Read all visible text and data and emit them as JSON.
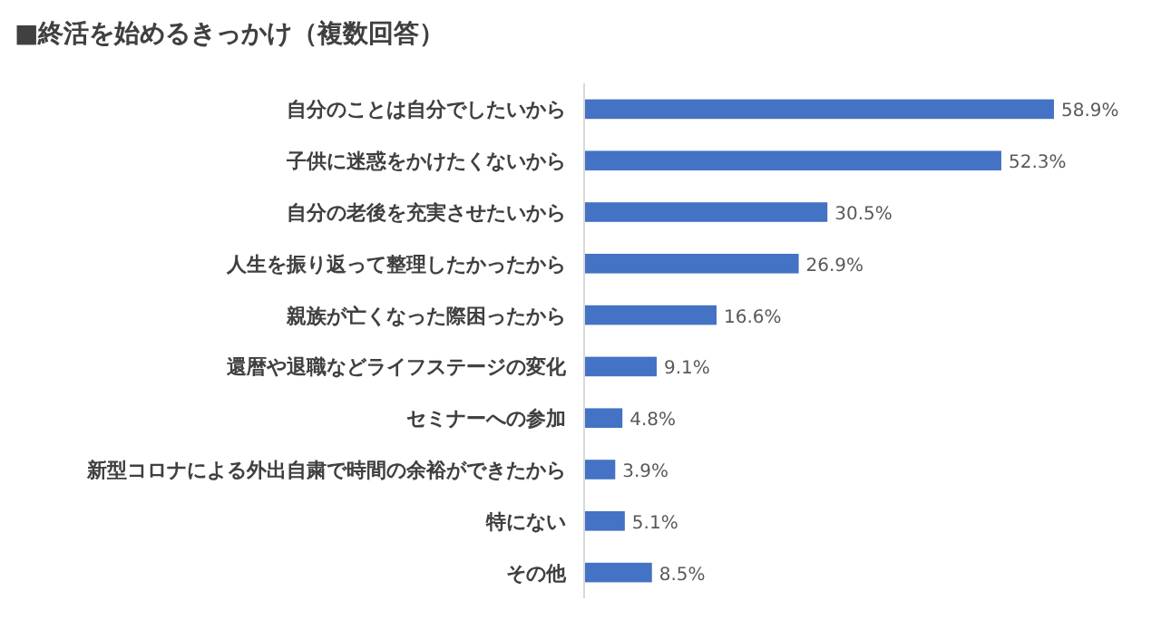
{
  "chart_data": {
    "type": "bar",
    "orientation": "horizontal",
    "title": "■終活を始めるきっかけ（複数回答）",
    "categories": [
      "自分のことは自分でしたいから",
      "子供に迷惑をかけたくないから",
      "自分の老後を充実させたいから",
      "人生を振り返って整理したかったから",
      "親族が亡くなった際困ったから",
      "還暦や退職などライフステージの変化",
      "セミナーへの参加",
      "新型コロナによる外出自粛で時間の余裕ができたから",
      "特にない",
      "その他"
    ],
    "values": [
      58.9,
      52.3,
      30.5,
      26.9,
      16.6,
      9.1,
      4.8,
      3.9,
      5.1,
      8.5
    ],
    "value_labels": [
      "58.9%",
      "52.3%",
      "30.5%",
      "26.9%",
      "16.6%",
      "9.1%",
      "4.8%",
      "3.9%",
      "5.1%",
      "8.5%"
    ],
    "color": "#4472c4"
  }
}
